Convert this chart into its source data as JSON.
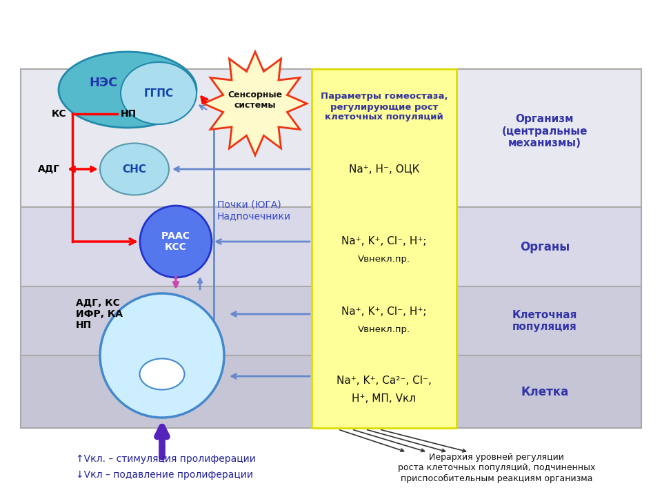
{
  "title_text": "Параметры гомеостаза,\nрегулирующие рост\nклеточных популяций",
  "org_label": "Организм\n(центральные\nмеханизмы)",
  "organy_label": "Органы",
  "cell_pop_label": "Клеточная\nпопуляция",
  "cell_label": "Клетка",
  "na_h_ock": "Na⁺, H⁻, ОЦК",
  "na_k_cl_h1": "Na⁺, K⁺, Cl⁻, H⁺;",
  "v_vnekl1": "Vвнекл.пр.",
  "na_k_cl_h2": "Na⁺, K⁺, Cl⁻, H⁺;",
  "v_vnekl2": "Vвнекл.пр.",
  "na_k_ca_cl": "Na⁺, K⁺, Ca²⁻, Cl⁻,",
  "h_mp_vkl": "H⁺, МП, Vкл",
  "pochki_label": "Почки (ЮГА)\nНадпочечники",
  "adg_ks_label": "АДГ, КС\nИФР, КА\nНП",
  "sensory_label": "Сенсорные\nсистемы",
  "bottom_text1": "↑Vкл. – стимуляция пролиферации",
  "bottom_text2": "↓Vкл – подавление пролиферации",
  "bottom_right_text": "Иерархия уровней регуляции\nроста клеточных популяций, подчиненных\nприспособительным реакциям организма"
}
